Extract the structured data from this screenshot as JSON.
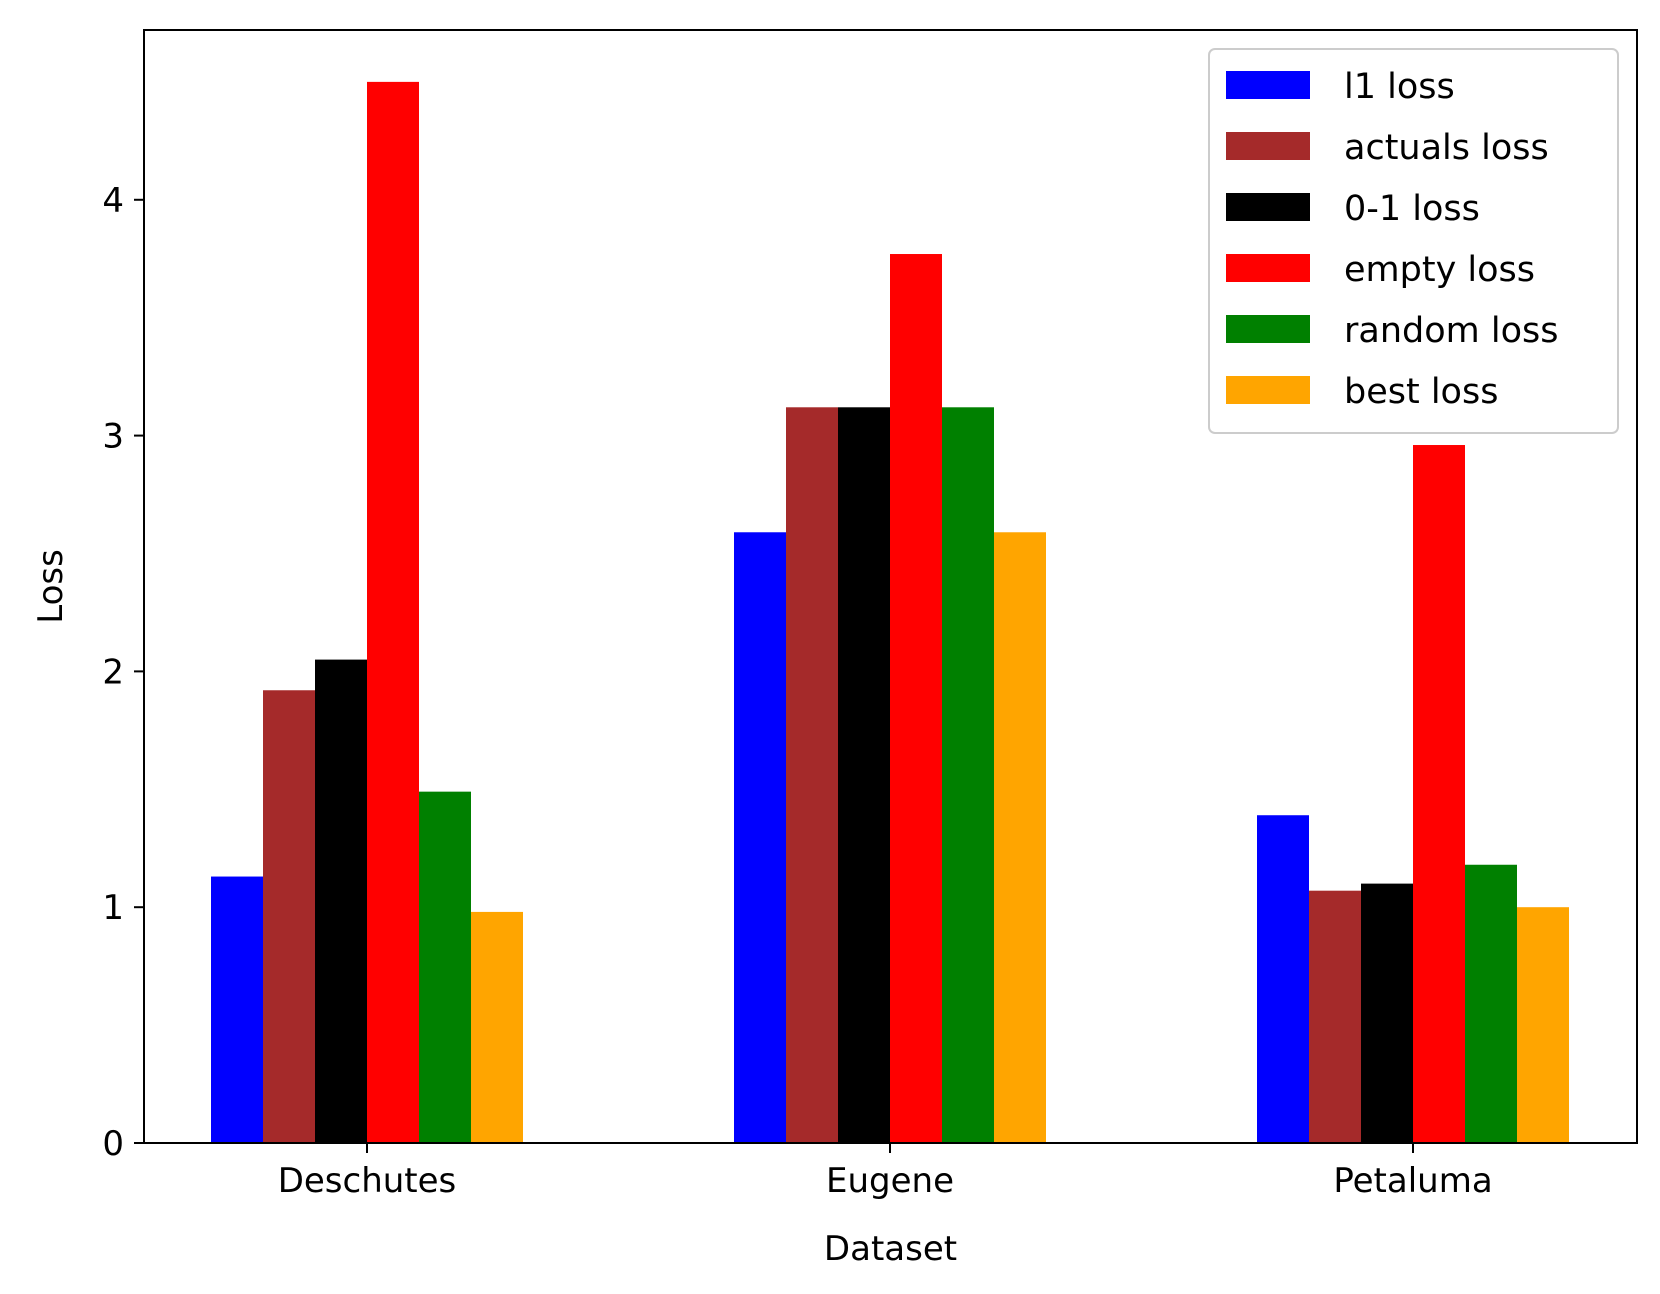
{
  "chart_data": {
    "type": "bar",
    "title": "",
    "xlabel": "Dataset",
    "ylabel": "Loss",
    "categories": [
      "Deschutes",
      "Eugene",
      "Petaluma"
    ],
    "ylim": [
      0,
      4.72
    ],
    "yticks": [
      0,
      1,
      2,
      3,
      4
    ],
    "ytick_labels": [
      "0",
      "1",
      "2",
      "3",
      "4"
    ],
    "grid": false,
    "legend_position": "top-right",
    "series": [
      {
        "name": "l1 loss",
        "color": "#0000ff",
        "values": [
          1.13,
          2.59,
          1.39
        ]
      },
      {
        "name": "actuals loss",
        "color": "#a52a2a",
        "values": [
          1.92,
          3.12,
          1.07
        ]
      },
      {
        "name": "0-1 loss",
        "color": "#000000",
        "values": [
          2.05,
          3.12,
          1.1
        ]
      },
      {
        "name": "empty loss",
        "color": "#ff0000",
        "values": [
          4.5,
          3.77,
          2.96
        ]
      },
      {
        "name": "random loss",
        "color": "#008000",
        "values": [
          1.49,
          3.12,
          1.18
        ]
      },
      {
        "name": "best loss",
        "color": "#ffa500",
        "values": [
          0.98,
          2.59,
          1.0
        ]
      }
    ]
  }
}
